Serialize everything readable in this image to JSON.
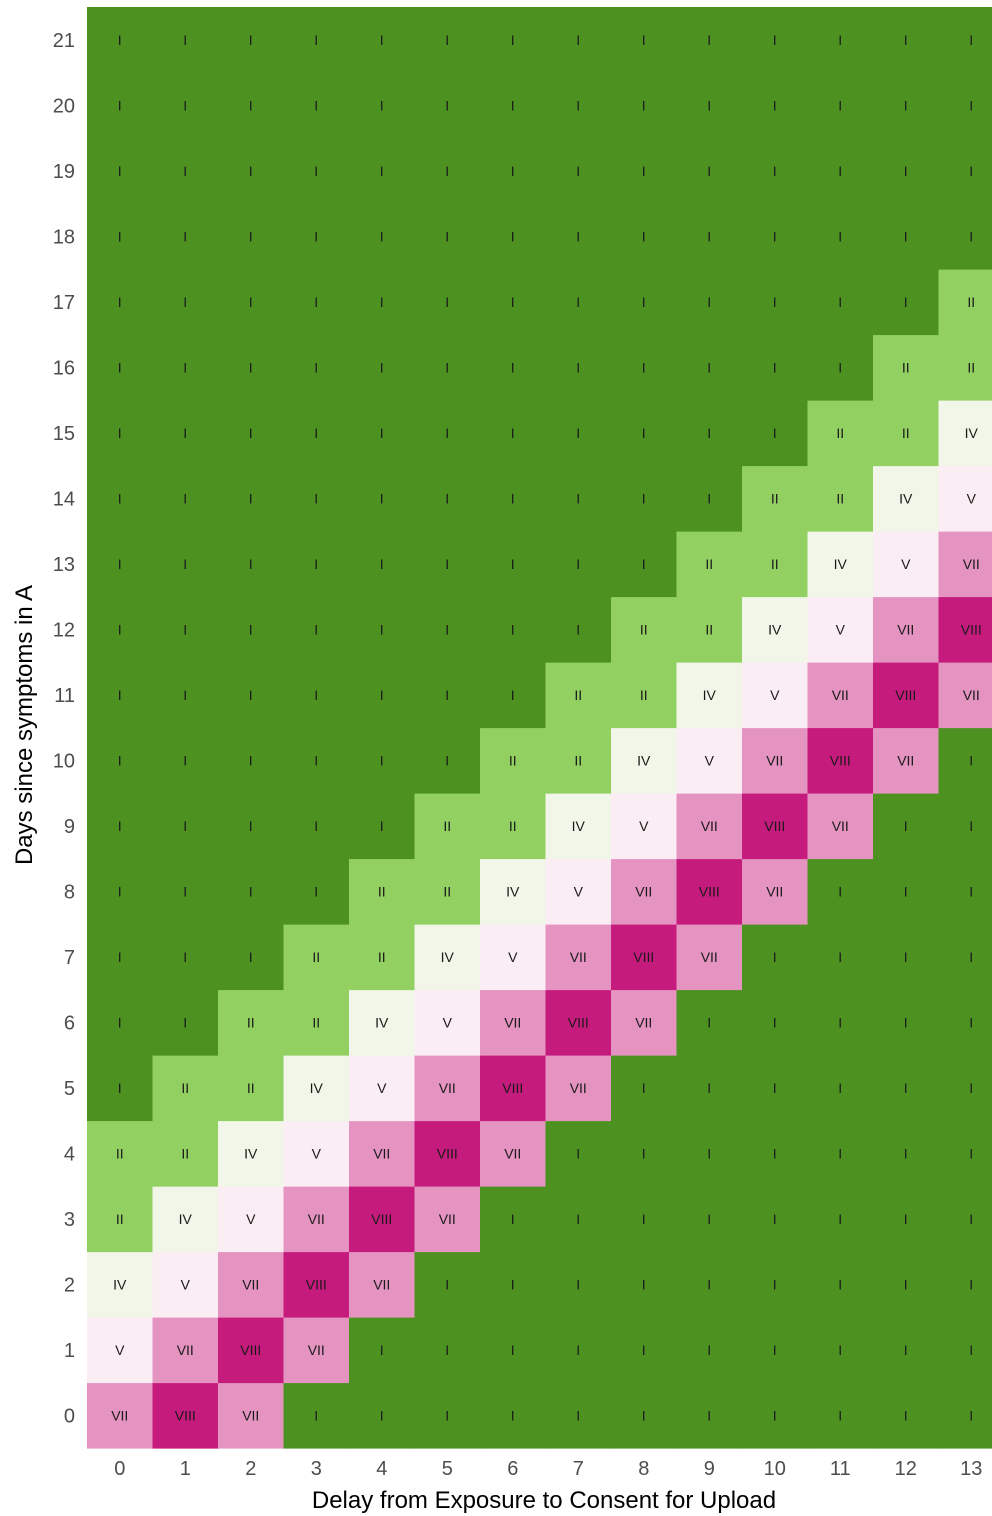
{
  "chart_data": {
    "type": "heatmap",
    "title": "",
    "xlabel": "Delay from Exposure to Consent for Upload",
    "ylabel": "Days since symptoms in A",
    "x": [
      0,
      1,
      2,
      3,
      4,
      5,
      6,
      7,
      8,
      9,
      10,
      11,
      12,
      13
    ],
    "y": [
      0,
      1,
      2,
      3,
      4,
      5,
      6,
      7,
      8,
      9,
      10,
      11,
      12,
      13,
      14,
      15,
      16,
      17,
      18,
      19,
      20,
      21
    ],
    "x_tick_labels": [
      "0",
      "1",
      "2",
      "3",
      "4",
      "5",
      "6",
      "7",
      "8",
      "9",
      "10",
      "11",
      "12",
      "13"
    ],
    "y_tick_labels": [
      "0",
      "1",
      "2",
      "3",
      "4",
      "5",
      "6",
      "7",
      "8",
      "9",
      "10",
      "11",
      "12",
      "13",
      "14",
      "15",
      "16",
      "17",
      "18",
      "19",
      "20",
      "21"
    ],
    "xlim": [
      0,
      13
    ],
    "ylim": [
      0,
      21
    ],
    "grid": false,
    "legend": "none",
    "colors": {
      "I": "#4d9221",
      "II": "#93d062",
      "IV": "#f1f6e8",
      "V": "#fbedf4",
      "VII": "#e594c1",
      "VIII": "#c51b7d"
    },
    "rule_note": "cell label determined by offset y - x",
    "values": [
      [
        "VII",
        "VIII",
        "VII",
        "I",
        "I",
        "I",
        "I",
        "I",
        "I",
        "I",
        "I",
        "I",
        "I",
        "I"
      ],
      [
        "V",
        "VII",
        "VIII",
        "VII",
        "I",
        "I",
        "I",
        "I",
        "I",
        "I",
        "I",
        "I",
        "I",
        "I"
      ],
      [
        "IV",
        "V",
        "VII",
        "VIII",
        "VII",
        "I",
        "I",
        "I",
        "I",
        "I",
        "I",
        "I",
        "I",
        "I"
      ],
      [
        "II",
        "IV",
        "V",
        "VII",
        "VIII",
        "VII",
        "I",
        "I",
        "I",
        "I",
        "I",
        "I",
        "I",
        "I"
      ],
      [
        "II",
        "II",
        "IV",
        "V",
        "VII",
        "VIII",
        "VII",
        "I",
        "I",
        "I",
        "I",
        "I",
        "I",
        "I"
      ],
      [
        "I",
        "II",
        "II",
        "IV",
        "V",
        "VII",
        "VIII",
        "VII",
        "I",
        "I",
        "I",
        "I",
        "I",
        "I"
      ],
      [
        "I",
        "I",
        "II",
        "II",
        "IV",
        "V",
        "VII",
        "VIII",
        "VII",
        "I",
        "I",
        "I",
        "I",
        "I"
      ],
      [
        "I",
        "I",
        "I",
        "II",
        "II",
        "IV",
        "V",
        "VII",
        "VIII",
        "VII",
        "I",
        "I",
        "I",
        "I"
      ],
      [
        "I",
        "I",
        "I",
        "I",
        "II",
        "II",
        "IV",
        "V",
        "VII",
        "VIII",
        "VII",
        "I",
        "I",
        "I"
      ],
      [
        "I",
        "I",
        "I",
        "I",
        "I",
        "II",
        "II",
        "IV",
        "V",
        "VII",
        "VIII",
        "VII",
        "I",
        "I"
      ],
      [
        "I",
        "I",
        "I",
        "I",
        "I",
        "I",
        "II",
        "II",
        "IV",
        "V",
        "VII",
        "VIII",
        "VII",
        "I"
      ],
      [
        "I",
        "I",
        "I",
        "I",
        "I",
        "I",
        "I",
        "II",
        "II",
        "IV",
        "V",
        "VII",
        "VIII",
        "VII"
      ],
      [
        "I",
        "I",
        "I",
        "I",
        "I",
        "I",
        "I",
        "I",
        "II",
        "II",
        "IV",
        "V",
        "VII",
        "VIII"
      ],
      [
        "I",
        "I",
        "I",
        "I",
        "I",
        "I",
        "I",
        "I",
        "I",
        "II",
        "II",
        "IV",
        "V",
        "VII"
      ],
      [
        "I",
        "I",
        "I",
        "I",
        "I",
        "I",
        "I",
        "I",
        "I",
        "I",
        "II",
        "II",
        "IV",
        "V"
      ],
      [
        "I",
        "I",
        "I",
        "I",
        "I",
        "I",
        "I",
        "I",
        "I",
        "I",
        "I",
        "II",
        "II",
        "IV"
      ],
      [
        "I",
        "I",
        "I",
        "I",
        "I",
        "I",
        "I",
        "I",
        "I",
        "I",
        "I",
        "I",
        "II",
        "II"
      ],
      [
        "I",
        "I",
        "I",
        "I",
        "I",
        "I",
        "I",
        "I",
        "I",
        "I",
        "I",
        "I",
        "I",
        "II"
      ],
      [
        "I",
        "I",
        "I",
        "I",
        "I",
        "I",
        "I",
        "I",
        "I",
        "I",
        "I",
        "I",
        "I",
        "I"
      ],
      [
        "I",
        "I",
        "I",
        "I",
        "I",
        "I",
        "I",
        "I",
        "I",
        "I",
        "I",
        "I",
        "I",
        "I"
      ],
      [
        "I",
        "I",
        "I",
        "I",
        "I",
        "I",
        "I",
        "I",
        "I",
        "I",
        "I",
        "I",
        "I",
        "I"
      ],
      [
        "I",
        "I",
        "I",
        "I",
        "I",
        "I",
        "I",
        "I",
        "I",
        "I",
        "I",
        "I",
        "I",
        "I"
      ]
    ]
  }
}
